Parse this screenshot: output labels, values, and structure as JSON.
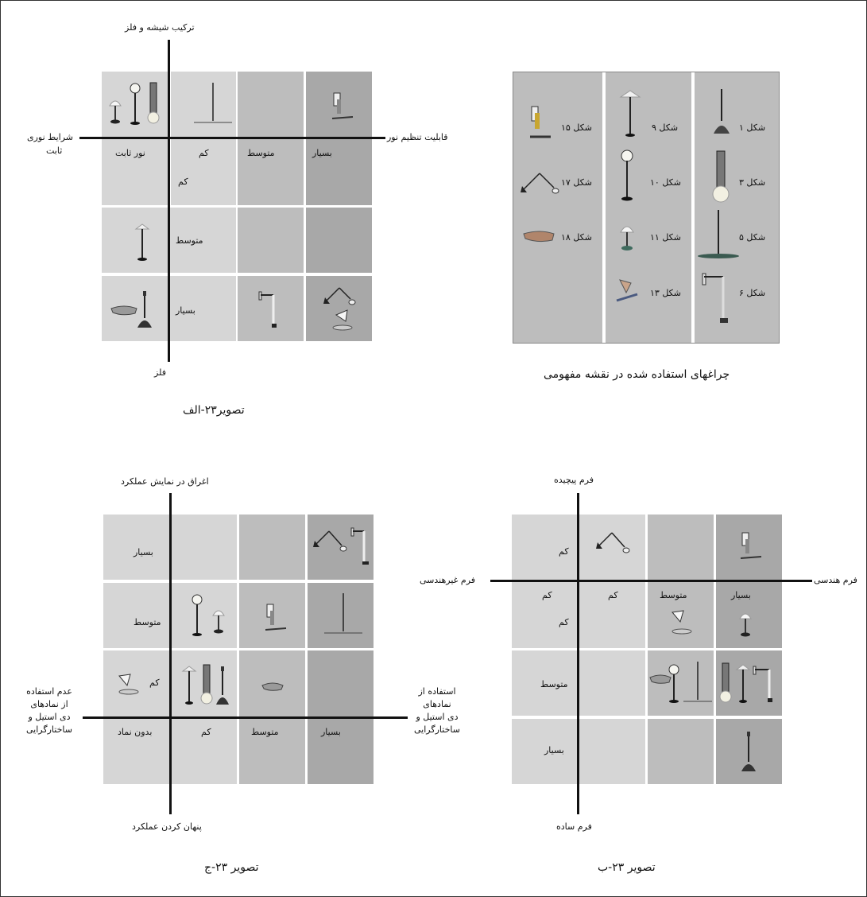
{
  "legend": {
    "title": "چراغهای استفاده شده در نقشه مفهومی",
    "items": {
      "s1": "شکل ۱",
      "s3": "شکل ۳",
      "s5": "شکل ۵",
      "s6": "شکل ۶",
      "s9": "شکل ۹",
      "s10": "شکل ۱۰",
      "s11": "شکل ۱۱",
      "s13": "شکل ۱۳",
      "s15": "شکل ۱۵",
      "s17": "شکل ۱۷",
      "s18": "شکل ۱۸"
    }
  },
  "diagram_alef": {
    "caption": "تصویر۲۳-الف",
    "axis_top": "ترکیب شیشه و فلز",
    "axis_bottom": "فلز",
    "axis_right": "قابلیت تنظیم نور",
    "axis_left_1": "شرایط نوری",
    "axis_left_2": "ثابت",
    "col_labels": [
      "بسیار",
      "متوسط",
      "کم",
      "نور ثابت"
    ],
    "row_labels": [
      "کم",
      "متوسط",
      "بسیار"
    ]
  },
  "diagram_b": {
    "caption": "تصویر ۲۳-ب",
    "axis_top": "فرم پیچیده",
    "axis_bottom": "فرم ساده",
    "axis_right": "فرم هندسی",
    "axis_left": "فرم غیرهندسی",
    "col_labels": [
      "بسیار",
      "متوسط",
      "کم",
      "کم"
    ],
    "row_labels": [
      "کم",
      "کم",
      "متوسط",
      "بسیار"
    ]
  },
  "diagram_jim": {
    "caption": "تصویر ۲۳-ج",
    "axis_top": "اغراق در نمایش عملکرد",
    "axis_bottom": "پنهان کردن عملکرد",
    "axis_right": [
      "استفاده از",
      "نمادهای",
      "دی استیل و",
      "ساختارگرایی"
    ],
    "axis_left": [
      "عدم استفاده",
      "از نمادهای",
      "دی استیل و",
      "ساختارگرایی"
    ],
    "row_labels": [
      "بسیار",
      "متوسط",
      "کم"
    ],
    "col_labels": [
      "بسیار",
      "متوسط",
      "کم",
      "بدون نماد"
    ]
  },
  "colors": {
    "light": "#d6d6d6",
    "mid": "#bdbdbd",
    "dark": "#a8a8a8",
    "axis": "#111111"
  }
}
